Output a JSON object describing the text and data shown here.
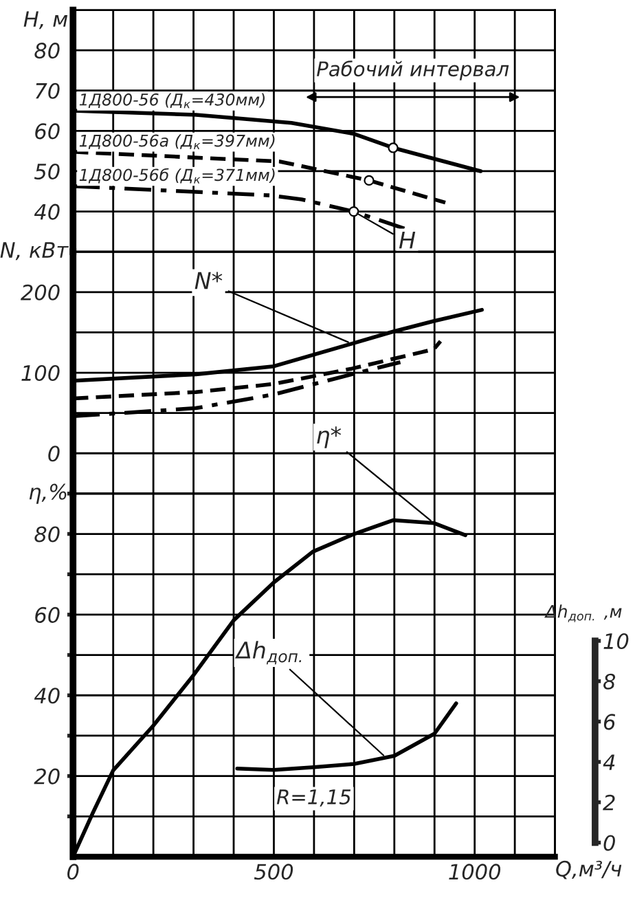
{
  "chart_data": [
    {
      "type": "line",
      "ylabel": "H, м",
      "xlim": [
        0,
        1200
      ],
      "ylim": [
        30,
        90
      ],
      "xticks": [
        0,
        {
          "value": 100,
          "label": null
        },
        {
          "value": 200,
          "label": null
        },
        {
          "value": 300,
          "label": null
        },
        {
          "value": 400,
          "label": null
        },
        500,
        {
          "value": 600,
          "label": null
        },
        {
          "value": 700,
          "label": null
        },
        {
          "value": 800,
          "label": null
        },
        {
          "value": 900,
          "label": null
        },
        1000,
        {
          "value": 1100,
          "label": null
        },
        {
          "value": 1200,
          "label": null
        }
      ],
      "yticks": [
        {
          "value": 30,
          "label": null
        },
        40,
        50,
        60,
        70,
        80,
        {
          "value": 90,
          "label": null
        }
      ],
      "tick_labels": "y",
      "grid": true,
      "legend": false,
      "series": [
        {
          "name": "1Д800-56 (Д$_{к}$=430мм)",
          "color": "#000000",
          "line_style": "solid",
          "x": [
            0,
            306,
            544,
            698,
            797,
            1015
          ],
          "values": [
            65,
            64,
            62,
            59.3,
            55.8,
            50
          ]
        },
        {
          "name": "1Д800-56а (Д$_{к}$=397мм)",
          "color": "#000000",
          "line_style": "dashed",
          "x": [
            0,
            515,
            737,
            927
          ],
          "values": [
            54.8,
            52.4,
            47.7,
            42.2
          ]
        },
        {
          "name": "1Д800-56б (Д$_{к}$=371мм)",
          "color": "#000000",
          "line_style": "dashdot",
          "x": [
            0,
            490,
            569,
            699,
            842
          ],
          "values": [
            46.3,
            44,
            43,
            40,
            35.2
          ]
        },
        {
          "type": "scatter",
          "marker": "circle",
          "color": "#ffffff",
          "x": [
            797,
            737,
            699
          ],
          "values": [
            55.8,
            47.7,
            40
          ]
        }
      ],
      "annotations": [
        {
          "text": "H",
          "x": 699,
          "y": 40
        },
        "Рабочий интервал"
      ]
    },
    {
      "type": "line",
      "ylabel": "N, кВт",
      "xlim": [
        0,
        1200
      ],
      "ylim": [
        -50,
        250
      ],
      "xticks": [
        0,
        {
          "value": 100,
          "label": null
        },
        {
          "value": 200,
          "label": null
        },
        {
          "value": 300,
          "label": null
        },
        {
          "value": 400,
          "label": null
        },
        500,
        {
          "value": 600,
          "label": null
        },
        {
          "value": 700,
          "label": null
        },
        {
          "value": 800,
          "label": null
        },
        {
          "value": 900,
          "label": null
        },
        1000,
        {
          "value": 1100,
          "label": null
        },
        {
          "value": 1200,
          "label": null
        }
      ],
      "yticks": [
        {
          "value": -50,
          "label": null
        },
        0,
        {
          "value": 50,
          "label": null
        },
        100,
        {
          "value": 150,
          "label": null
        },
        200,
        {
          "value": 250,
          "label": null
        }
      ],
      "tick_labels": "y",
      "grid": true,
      "legend": false,
      "series": [
        {
          "color": "#000000",
          "line_style": "solid",
          "x": [
            0,
            306,
            500,
            694,
            797,
            898,
            1018
          ],
          "values": [
            90,
            98,
            108,
            136,
            151,
            164,
            178
          ]
        },
        {
          "color": "#000000",
          "line_style": "dashed",
          "x": [
            0,
            306,
            500,
            694,
            898,
            915
          ],
          "values": [
            68,
            76,
            86,
            105,
            129,
            139
          ]
        },
        {
          "color": "#000000",
          "line_style": "dashdot",
          "x": [
            0,
            306,
            500,
            694,
            815
          ],
          "values": [
            46,
            56,
            73,
            98,
            113
          ]
        }
      ],
      "annotations": [
        {
          "text": "N*",
          "x": 694,
          "y": 136
        }
      ]
    },
    {
      "type": "line",
      "ylabel": "η,%",
      "xlabel": "Q,м³/ч",
      "y2label": "Δh$_{доп.}$ ,м",
      "xlim": [
        0,
        1200
      ],
      "ylim": [
        0,
        90
      ],
      "y2lim": [
        -0.7,
        17.3
      ],
      "xticks": [
        0,
        {
          "value": 100,
          "label": null
        },
        {
          "value": 200,
          "label": null
        },
        {
          "value": 300,
          "label": null
        },
        {
          "value": 400,
          "label": null
        },
        500,
        {
          "value": 600,
          "label": null
        },
        {
          "value": 700,
          "label": null
        },
        {
          "value": 800,
          "label": null
        },
        {
          "value": 900,
          "label": null
        },
        1000,
        {
          "value": 1100,
          "label": null
        },
        {
          "value": 1200,
          "label": null
        }
      ],
      "yticks": [
        {
          "value": 10,
          "label": null
        },
        20,
        {
          "value": 30,
          "label": null
        },
        40,
        {
          "value": 50,
          "label": null
        },
        60,
        {
          "value": 70,
          "label": null
        },
        80,
        {
          "value": 90,
          "label": null
        }
      ],
      "y2ticks": [
        0,
        2,
        4,
        6,
        8,
        10
      ],
      "grid": true,
      "legend": false,
      "series": [
        {
          "color": "#000000",
          "line_style": "solid",
          "x": [
            0,
            50,
            100,
            200,
            300,
            400,
            500,
            597,
            700,
            797,
            898,
            977
          ],
          "values": [
            0,
            11,
            21.4,
            32.5,
            45,
            58.6,
            68,
            75.6,
            80,
            83.4,
            82.7,
            79.7
          ]
        },
        {
          "color": "#000000",
          "line_style": "solid",
          "axis": "y2",
          "x": [
            409,
            500,
            600,
            700,
            800,
            900,
            954
          ],
          "values": [
            3.67,
            3.6,
            3.74,
            3.9,
            4.3,
            5.4,
            6.9
          ]
        }
      ],
      "annotations": [
        {
          "text": "η*",
          "x": 898,
          "y": 82.7
        },
        {
          "text": "Δh$_{доп.}$",
          "x": 780,
          "y": 24.5
        },
        "R=1,15"
      ]
    }
  ]
}
